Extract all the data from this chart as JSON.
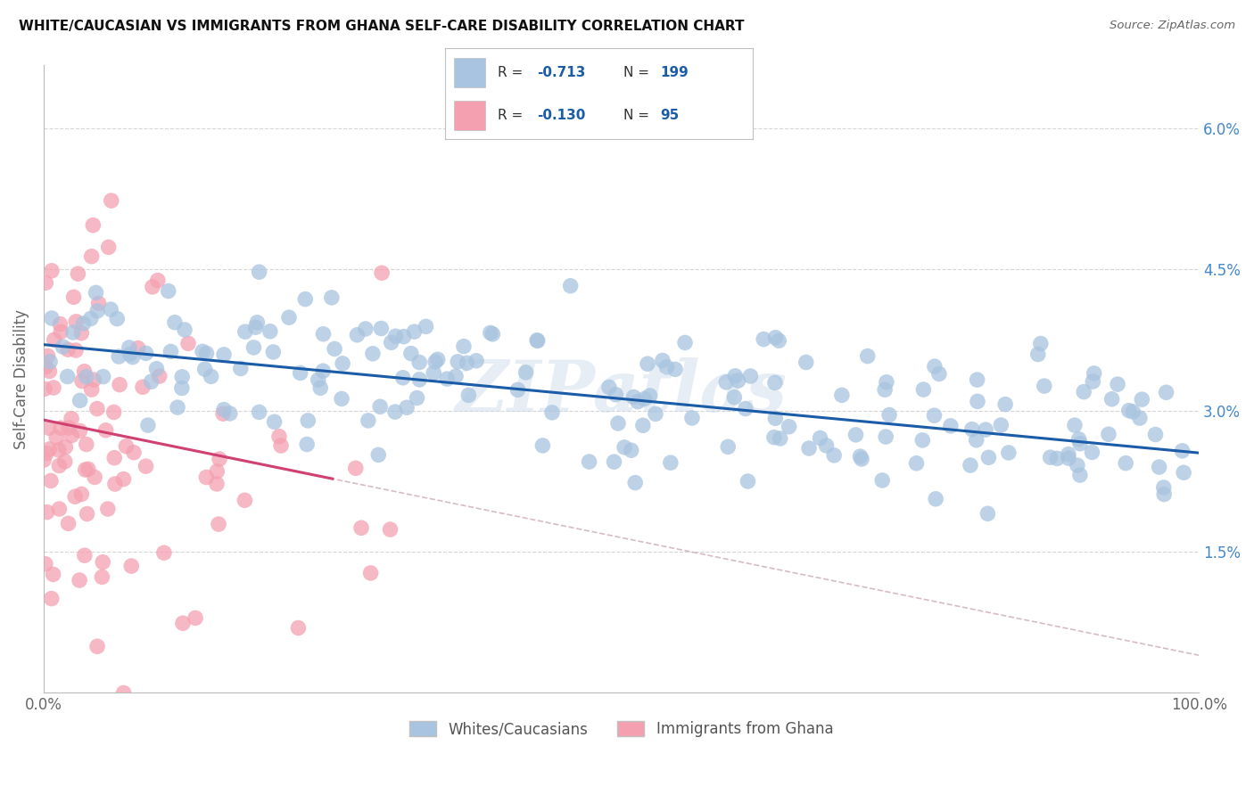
{
  "title": "WHITE/CAUCASIAN VS IMMIGRANTS FROM GHANA SELF-CARE DISABILITY CORRELATION CHART",
  "source": "Source: ZipAtlas.com",
  "ylabel": "Self-Care Disability",
  "blue_R": -0.713,
  "blue_N": 199,
  "pink_R": -0.13,
  "pink_N": 95,
  "blue_color": "#a8c4e0",
  "pink_color": "#f4a0b0",
  "blue_line_color": "#1a5ca8",
  "pink_line_color": "#d04070",
  "pink_dash_color": "#d0b0b8",
  "legend_label_blue": "Whites/Caucasians",
  "legend_label_pink": "Immigrants from Ghana",
  "watermark": "ZIPatlas",
  "xlim": [
    0,
    100
  ],
  "ylim": [
    0,
    6.67
  ],
  "yticks": [
    0,
    1.5,
    3.0,
    4.5,
    6.0
  ],
  "ytick_labels": [
    "",
    "1.5%",
    "3.0%",
    "4.5%",
    "6.0%"
  ],
  "grid_color": "#cccccc",
  "bg_color": "#ffffff",
  "title_fontsize": 11,
  "blue_line_start_y": 3.7,
  "blue_line_end_y": 2.55,
  "pink_line_start_y": 2.9,
  "pink_line_end_y": 0.4
}
